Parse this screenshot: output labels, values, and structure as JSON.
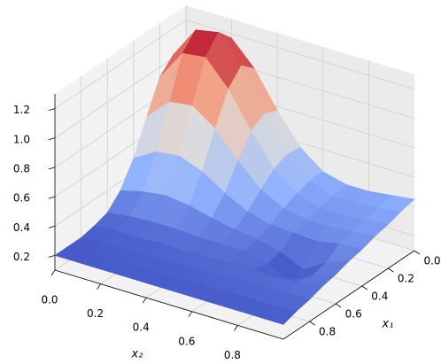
{
  "chart_data": {
    "type": "surface",
    "x": [
      0,
      0.1,
      0.2,
      0.3,
      0.4,
      0.5,
      0.6,
      0.7,
      0.8,
      0.9,
      1
    ],
    "y": [
      0,
      0.1,
      0.2,
      0.3,
      0.4,
      0.5,
      0.6,
      0.7,
      0.8,
      0.9,
      1
    ],
    "z": [
      [
        0.93,
        1.14,
        1.17,
        1.01,
        0.77,
        0.57,
        0.45,
        0.41,
        0.41,
        0.43,
        0.45
      ],
      [
        1.02,
        1.24,
        1.27,
        1.09,
        0.81,
        0.58,
        0.45,
        0.39,
        0.39,
        0.4,
        0.43
      ],
      [
        0.93,
        1.14,
        1.16,
        0.99,
        0.75,
        0.54,
        0.42,
        0.37,
        0.37,
        0.38,
        0.4
      ],
      [
        0.72,
        0.87,
        0.89,
        0.78,
        0.61,
        0.46,
        0.38,
        0.35,
        0.35,
        0.36,
        0.38
      ],
      [
        0.5,
        0.59,
        0.61,
        0.55,
        0.45,
        0.37,
        0.33,
        0.32,
        0.31,
        0.34,
        0.35
      ],
      [
        0.34,
        0.38,
        0.4,
        0.38,
        0.34,
        0.31,
        0.29,
        0.25,
        0.18,
        0.27,
        0.33
      ],
      [
        0.25,
        0.27,
        0.28,
        0.28,
        0.27,
        0.27,
        0.27,
        0.23,
        0.16,
        0.25,
        0.3
      ],
      [
        0.22,
        0.23,
        0.23,
        0.24,
        0.24,
        0.24,
        0.25,
        0.25,
        0.24,
        0.27,
        0.28
      ],
      [
        0.2,
        0.21,
        0.21,
        0.22,
        0.22,
        0.23,
        0.23,
        0.24,
        0.24,
        0.25,
        0.25
      ],
      [
        0.2,
        0.2,
        0.21,
        0.21,
        0.21,
        0.21,
        0.22,
        0.22,
        0.22,
        0.22,
        0.23
      ],
      [
        0.2,
        0.2,
        0.2,
        0.2,
        0.2,
        0.2,
        0.2,
        0.2,
        0.2,
        0.2,
        0.2
      ]
    ],
    "xlabel": "x₁",
    "ylabel": "x₂",
    "xlim": [
      0,
      1
    ],
    "ylim": [
      0,
      1
    ],
    "zlim": [
      0.1,
      1.3
    ],
    "xticks": [
      {
        "value": 0,
        "label": "0.0"
      },
      0.2,
      0.4,
      0.6,
      0.8
    ],
    "yticks": [
      {
        "value": 0,
        "label": "0.0"
      },
      0.2,
      0.4,
      0.6,
      0.8
    ],
    "zticks": [
      0.2,
      0.4,
      0.6,
      0.8,
      {
        "value": 1,
        "label": "1.0"
      },
      1.2
    ],
    "colormap": "coolwarm",
    "grid": true
  }
}
